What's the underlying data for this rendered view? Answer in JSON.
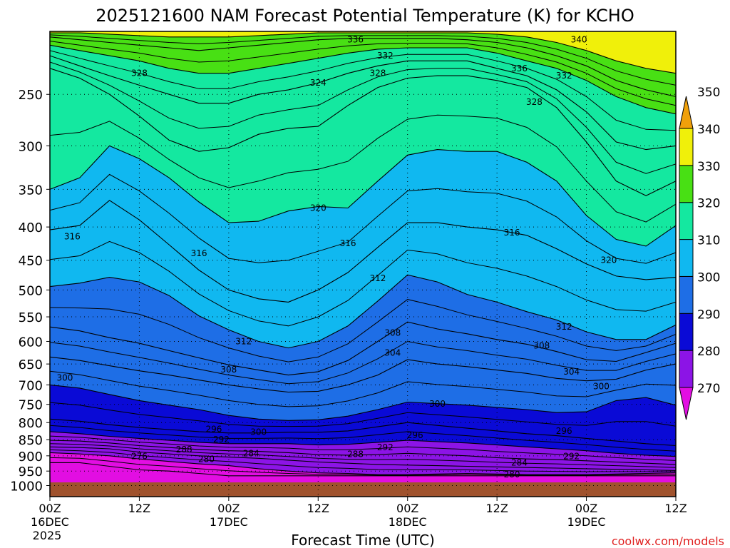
{
  "chart_data": {
    "type": "heatmap",
    "title": "2025121600 NAM Forecast Potential Temperature (K) for KCHO",
    "xlabel": "Forecast Time (UTC)",
    "watermark": "coolwx.com/models",
    "x_hours": [
      0,
      84
    ],
    "x_ticks": [
      {
        "hour": 0,
        "label": "00Z",
        "sub1": "16DEC",
        "sub2": "2025"
      },
      {
        "hour": 12,
        "label": "12Z",
        "sub1": "",
        "sub2": ""
      },
      {
        "hour": 24,
        "label": "00Z",
        "sub1": "17DEC",
        "sub2": ""
      },
      {
        "hour": 36,
        "label": "12Z",
        "sub1": "",
        "sub2": ""
      },
      {
        "hour": 48,
        "label": "00Z",
        "sub1": "18DEC",
        "sub2": ""
      },
      {
        "hour": 60,
        "label": "12Z",
        "sub1": "",
        "sub2": ""
      },
      {
        "hour": 72,
        "label": "00Z",
        "sub1": "19DEC",
        "sub2": ""
      },
      {
        "hour": 84,
        "label": "12Z",
        "sub1": "",
        "sub2": ""
      }
    ],
    "y_pressure_range": [
      200,
      1040
    ],
    "y_ticks": [
      250,
      300,
      350,
      400,
      450,
      500,
      550,
      600,
      650,
      700,
      750,
      800,
      850,
      900,
      950,
      1000
    ],
    "surface_pressure": 1000,
    "colorbar": {
      "levels": [
        270,
        280,
        290,
        300,
        310,
        320,
        330,
        340,
        350
      ],
      "colors": [
        "#e20ee2",
        "#8c14e6",
        "#0a0ad6",
        "#1e6ee6",
        "#10b8f0",
        "#14e8a0",
        "#48e014",
        "#f0f00a",
        "#f0a00a"
      ]
    },
    "isentropes": [
      {
        "theta": 276,
        "pressure": [
          922,
          922,
          934,
          946,
          950,
          958,
          966,
          966,
          966,
          966,
          966,
          966,
          966,
          966,
          966,
          966,
          966,
          966,
          966,
          966,
          966,
          966
        ]
      },
      {
        "theta": 280,
        "pressure": [
          890,
          894,
          900,
          910,
          918,
          926,
          932,
          942,
          950,
          956,
          958,
          962,
          962,
          960,
          958,
          960,
          962,
          962,
          962,
          960,
          958,
          956
        ]
      },
      {
        "theta": 284,
        "pressure": [
          872,
          874,
          878,
          888,
          894,
          900,
          904,
          908,
          914,
          920,
          924,
          928,
          930,
          932,
          934,
          936,
          938,
          940,
          942,
          944,
          946,
          948
        ]
      },
      {
        "theta": 288,
        "pressure": [
          852,
          854,
          860,
          868,
          874,
          880,
          884,
          886,
          890,
          896,
          898,
          896,
          892,
          896,
          900,
          906,
          910,
          912,
          916,
          920,
          924,
          928
        ]
      },
      {
        "theta": 292,
        "pressure": [
          826,
          832,
          840,
          846,
          852,
          858,
          862,
          862,
          862,
          866,
          864,
          858,
          852,
          856,
          860,
          866,
          872,
          878,
          884,
          892,
          898,
          902
        ]
      },
      {
        "theta": 296,
        "pressure": [
          790,
          796,
          806,
          814,
          820,
          826,
          830,
          830,
          828,
          828,
          824,
          812,
          800,
          808,
          816,
          824,
          832,
          838,
          846,
          854,
          862,
          868
        ]
      },
      {
        "theta": 300,
        "pressure": [
          700,
          708,
          724,
          740,
          752,
          764,
          780,
          790,
          794,
          792,
          782,
          764,
          744,
          748,
          752,
          758,
          764,
          772,
          770,
          740,
          732,
          752
        ]
      },
      {
        "theta": 304,
        "pressure": [
          634,
          642,
          654,
          666,
          676,
          688,
          700,
          710,
          718,
          716,
          700,
          676,
          640,
          650,
          656,
          664,
          672,
          684,
          690,
          686,
          664,
          650
        ]
      },
      {
        "theta": 308,
        "pressure": [
          570,
          578,
          592,
          604,
          620,
          636,
          652,
          664,
          676,
          668,
          642,
          600,
          560,
          574,
          584,
          596,
          606,
          622,
          640,
          644,
          624,
          604
        ]
      },
      {
        "theta": 312,
        "pressure": [
          494,
          488,
          478,
          486,
          510,
          548,
          576,
          600,
          614,
          600,
          568,
          520,
          474,
          486,
          508,
          522,
          540,
          556,
          580,
          596,
          596,
          566
        ]
      },
      {
        "theta": 316,
        "pressure": [
          404,
          398,
          364,
          390,
          426,
          466,
          500,
          516,
          522,
          500,
          470,
          430,
          394,
          394,
          400,
          404,
          412,
          432,
          456,
          476,
          482,
          478
        ]
      },
      {
        "theta": 320,
        "pressure": [
          350,
          336,
          300,
          314,
          336,
          366,
          394,
          392,
          378,
          372,
          374,
          340,
          310,
          304,
          306,
          306,
          318,
          340,
          384,
          418,
          428,
          398
        ]
      },
      {
        "theta": 324,
        "pressure": [
          228,
          236,
          250,
          270,
          294,
          306,
          302,
          288,
          282,
          280,
          260,
          244,
          236,
          234,
          234,
          238,
          244,
          262,
          296,
          340,
          358,
          340
        ]
      },
      {
        "theta": 328,
        "pressure": [
          218,
          226,
          234,
          242,
          250,
          258,
          258,
          250,
          246,
          240,
          232,
          226,
          222,
          222,
          222,
          228,
          234,
          246,
          266,
          296,
          304,
          300
        ]
      },
      {
        "theta": 332,
        "pressure": [
          210,
          214,
          218,
          222,
          228,
          232,
          232,
          228,
          224,
          220,
          216,
          213,
          212,
          212,
          212,
          216,
          222,
          228,
          238,
          252,
          262,
          268
        ]
      },
      {
        "theta": 336,
        "pressure": [
          204,
          206,
          208,
          210,
          212,
          214,
          212,
          210,
          208,
          206,
          205,
          205,
          205,
          205,
          206,
          208,
          212,
          218,
          226,
          238,
          246,
          252
        ]
      },
      {
        "theta": 340,
        "pressure": [
          201,
          201,
          202,
          203,
          204,
          204,
          204,
          203,
          202,
          201,
          201,
          201,
          201,
          201,
          201,
          202,
          204,
          208,
          214,
          222,
          228,
          232
        ]
      }
    ],
    "contour_labels": [
      {
        "text": "336",
        "hour": 41,
        "pressure": 206
      },
      {
        "text": "332",
        "hour": 45,
        "pressure": 218
      },
      {
        "text": "340",
        "hour": 71,
        "pressure": 206
      },
      {
        "text": "328",
        "hour": 12,
        "pressure": 232
      },
      {
        "text": "328",
        "hour": 44,
        "pressure": 232
      },
      {
        "text": "324",
        "hour": 36,
        "pressure": 240
      },
      {
        "text": "336",
        "hour": 63,
        "pressure": 228
      },
      {
        "text": "332",
        "hour": 69,
        "pressure": 234
      },
      {
        "text": "328",
        "hour": 65,
        "pressure": 257
      },
      {
        "text": "320",
        "hour": 36,
        "pressure": 374
      },
      {
        "text": "316",
        "hour": 3,
        "pressure": 414
      },
      {
        "text": "316",
        "hour": 20,
        "pressure": 439
      },
      {
        "text": "316",
        "hour": 40,
        "pressure": 424
      },
      {
        "text": "316",
        "hour": 62,
        "pressure": 408
      },
      {
        "text": "320",
        "hour": 75,
        "pressure": 450
      },
      {
        "text": "312",
        "hour": 44,
        "pressure": 480
      },
      {
        "text": "312",
        "hour": 26,
        "pressure": 600
      },
      {
        "text": "312",
        "hour": 69,
        "pressure": 570
      },
      {
        "text": "308",
        "hour": 46,
        "pressure": 582
      },
      {
        "text": "308",
        "hour": 66,
        "pressure": 609
      },
      {
        "text": "308",
        "hour": 24,
        "pressure": 663
      },
      {
        "text": "304",
        "hour": 46,
        "pressure": 625
      },
      {
        "text": "304",
        "hour": 70,
        "pressure": 668
      },
      {
        "text": "300",
        "hour": 2,
        "pressure": 683
      },
      {
        "text": "300",
        "hour": 52,
        "pressure": 749
      },
      {
        "text": "300",
        "hour": 74,
        "pressure": 704
      },
      {
        "text": "296",
        "hour": 22,
        "pressure": 819
      },
      {
        "text": "300",
        "hour": 28,
        "pressure": 827
      },
      {
        "text": "292",
        "hour": 23,
        "pressure": 850
      },
      {
        "text": "296",
        "hour": 49,
        "pressure": 837
      },
      {
        "text": "296",
        "hour": 69,
        "pressure": 824
      },
      {
        "text": "288",
        "hour": 18,
        "pressure": 880
      },
      {
        "text": "284",
        "hour": 27,
        "pressure": 893
      },
      {
        "text": "288",
        "hour": 41,
        "pressure": 895
      },
      {
        "text": "292",
        "hour": 45,
        "pressure": 873
      },
      {
        "text": "276",
        "hour": 12,
        "pressure": 902
      },
      {
        "text": "280",
        "hour": 21,
        "pressure": 911
      },
      {
        "text": "292",
        "hour": 70,
        "pressure": 902
      },
      {
        "text": "284",
        "hour": 63,
        "pressure": 922
      },
      {
        "text": "280",
        "hour": 62,
        "pressure": 962
      }
    ]
  }
}
